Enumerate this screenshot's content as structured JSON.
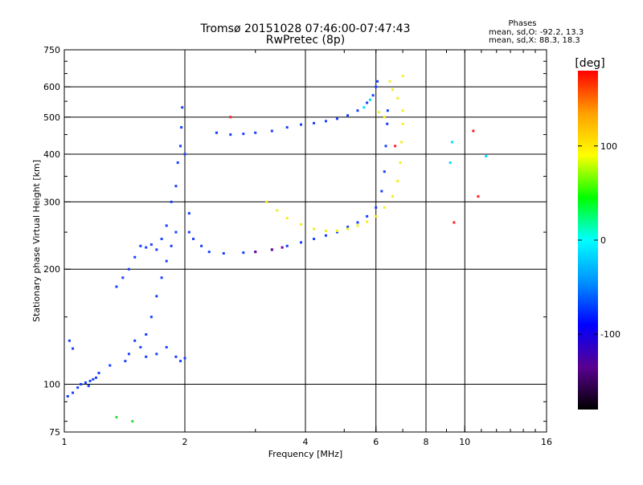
{
  "chart_data": {
    "type": "scatter",
    "title": "Tromsø 20151028 07:46:00-07:47:43",
    "subtitle": "RwPretec (8p)",
    "xlabel": "Frequency [MHz]",
    "ylabel": "Stationary phase Virtual Height [km]",
    "x_scale": "log",
    "y_scale": "log",
    "xlim": [
      1,
      16
    ],
    "ylim": [
      75,
      750
    ],
    "x_ticks": [
      1,
      2,
      4,
      6,
      8,
      10,
      16
    ],
    "y_ticks": [
      75,
      100,
      200,
      300,
      400,
      500,
      600,
      750
    ],
    "grid_x": [
      2,
      4,
      6,
      8,
      10
    ],
    "grid_y": [
      100,
      200,
      300,
      400,
      500,
      600
    ],
    "grid": true,
    "phases": {
      "heading": "Phases",
      "o_line": "mean, sd,O: -92.2, 13.3",
      "x_line": "mean, sd,X:  88.3, 18.3"
    },
    "colorbar": {
      "label": "[deg]",
      "ticks": [
        100,
        0,
        -100
      ],
      "range": [
        -180,
        180
      ],
      "colors": [
        "#000000",
        "#5a0090",
        "#0000ff",
        "#0090ff",
        "#00ffff",
        "#00ff00",
        "#ffff00",
        "#ffa000",
        "#ff0000"
      ]
    },
    "series": [
      {
        "phase": -100,
        "color": "#1840ff",
        "points": [
          [
            1.02,
            93
          ],
          [
            1.05,
            95
          ],
          [
            1.08,
            98
          ],
          [
            1.1,
            100
          ],
          [
            1.13,
            101
          ],
          [
            1.16,
            102
          ],
          [
            1.2,
            104
          ],
          [
            1.03,
            130
          ],
          [
            1.05,
            124
          ],
          [
            1.1,
            100
          ],
          [
            1.15,
            99
          ],
          [
            1.18,
            103
          ],
          [
            1.22,
            107
          ],
          [
            1.3,
            112
          ],
          [
            1.35,
            180
          ],
          [
            1.4,
            190
          ],
          [
            1.45,
            200
          ],
          [
            1.5,
            215
          ],
          [
            1.55,
            230
          ],
          [
            1.6,
            228
          ],
          [
            1.65,
            232
          ],
          [
            1.7,
            225
          ],
          [
            1.75,
            240
          ],
          [
            1.8,
            260
          ],
          [
            1.85,
            300
          ],
          [
            1.9,
            330
          ],
          [
            1.92,
            380
          ],
          [
            1.95,
            420
          ],
          [
            1.96,
            470
          ],
          [
            1.97,
            530
          ],
          [
            2.0,
            400
          ],
          [
            2.05,
            280
          ],
          [
            1.9,
            250
          ],
          [
            1.85,
            230
          ],
          [
            1.8,
            210
          ],
          [
            1.75,
            190
          ],
          [
            1.7,
            170
          ],
          [
            1.65,
            150
          ],
          [
            1.6,
            135
          ],
          [
            1.55,
            125
          ],
          [
            1.5,
            130
          ],
          [
            1.45,
            120
          ],
          [
            1.42,
            115
          ],
          [
            1.6,
            118
          ],
          [
            1.7,
            120
          ],
          [
            1.8,
            125
          ],
          [
            1.9,
            118
          ],
          [
            1.95,
            115
          ],
          [
            2.0,
            117
          ],
          [
            2.05,
            250
          ],
          [
            2.1,
            240
          ],
          [
            2.2,
            230
          ],
          [
            2.3,
            222
          ],
          [
            2.5,
            220
          ],
          [
            2.8,
            221
          ],
          [
            3.0,
            222
          ],
          [
            3.3,
            225
          ],
          [
            3.6,
            230
          ],
          [
            3.9,
            235
          ],
          [
            4.2,
            240
          ],
          [
            4.5,
            245
          ],
          [
            4.8,
            250
          ],
          [
            5.1,
            258
          ],
          [
            5.4,
            265
          ],
          [
            5.7,
            275
          ],
          [
            6.0,
            290
          ],
          [
            6.2,
            320
          ],
          [
            6.3,
            360
          ],
          [
            6.35,
            420
          ],
          [
            6.4,
            480
          ],
          [
            6.42,
            520
          ],
          [
            2.4,
            455
          ],
          [
            2.6,
            450
          ],
          [
            2.8,
            452
          ],
          [
            3.0,
            455
          ],
          [
            3.3,
            460
          ],
          [
            3.6,
            470
          ],
          [
            3.9,
            478
          ],
          [
            4.2,
            482
          ],
          [
            4.5,
            488
          ],
          [
            4.8,
            495
          ],
          [
            5.1,
            505
          ],
          [
            5.4,
            520
          ],
          [
            5.7,
            545
          ],
          [
            5.9,
            570
          ],
          [
            6.0,
            600
          ],
          [
            6.05,
            620
          ]
        ]
      },
      {
        "phase": 90,
        "color": "#f0f020",
        "points": [
          [
            3.2,
            300
          ],
          [
            3.4,
            285
          ],
          [
            3.6,
            272
          ],
          [
            3.9,
            262
          ],
          [
            4.2,
            255
          ],
          [
            4.5,
            252
          ],
          [
            4.8,
            252
          ],
          [
            5.1,
            255
          ],
          [
            5.4,
            260
          ],
          [
            5.7,
            266
          ],
          [
            6.0,
            275
          ],
          [
            6.3,
            290
          ],
          [
            6.6,
            310
          ],
          [
            6.8,
            340
          ],
          [
            6.9,
            380
          ],
          [
            6.95,
            430
          ],
          [
            7.0,
            480
          ],
          [
            7.0,
            520
          ],
          [
            6.8,
            560
          ],
          [
            6.6,
            590
          ],
          [
            6.5,
            620
          ],
          [
            7.0,
            640
          ],
          [
            6.3,
            500
          ],
          [
            6.1,
            515
          ]
        ]
      },
      {
        "phase": 0,
        "color": "#00e0ff",
        "points": [
          [
            5.6,
            530
          ],
          [
            5.8,
            555
          ],
          [
            9.3,
            430
          ],
          [
            9.2,
            380
          ],
          [
            11.3,
            395
          ]
        ]
      },
      {
        "phase": -130,
        "color": "#7000a0",
        "points": [
          [
            3.0,
            222
          ],
          [
            3.3,
            225
          ],
          [
            3.5,
            228
          ]
        ]
      },
      {
        "phase": 170,
        "color": "#ff2020",
        "points": [
          [
            10.5,
            460
          ],
          [
            10.8,
            310
          ],
          [
            9.4,
            265
          ],
          [
            6.7,
            420
          ],
          [
            2.6,
            500
          ]
        ]
      },
      {
        "phase": 20,
        "color": "#30e040",
        "points": [
          [
            1.35,
            82
          ],
          [
            1.48,
            80
          ]
        ]
      }
    ]
  }
}
